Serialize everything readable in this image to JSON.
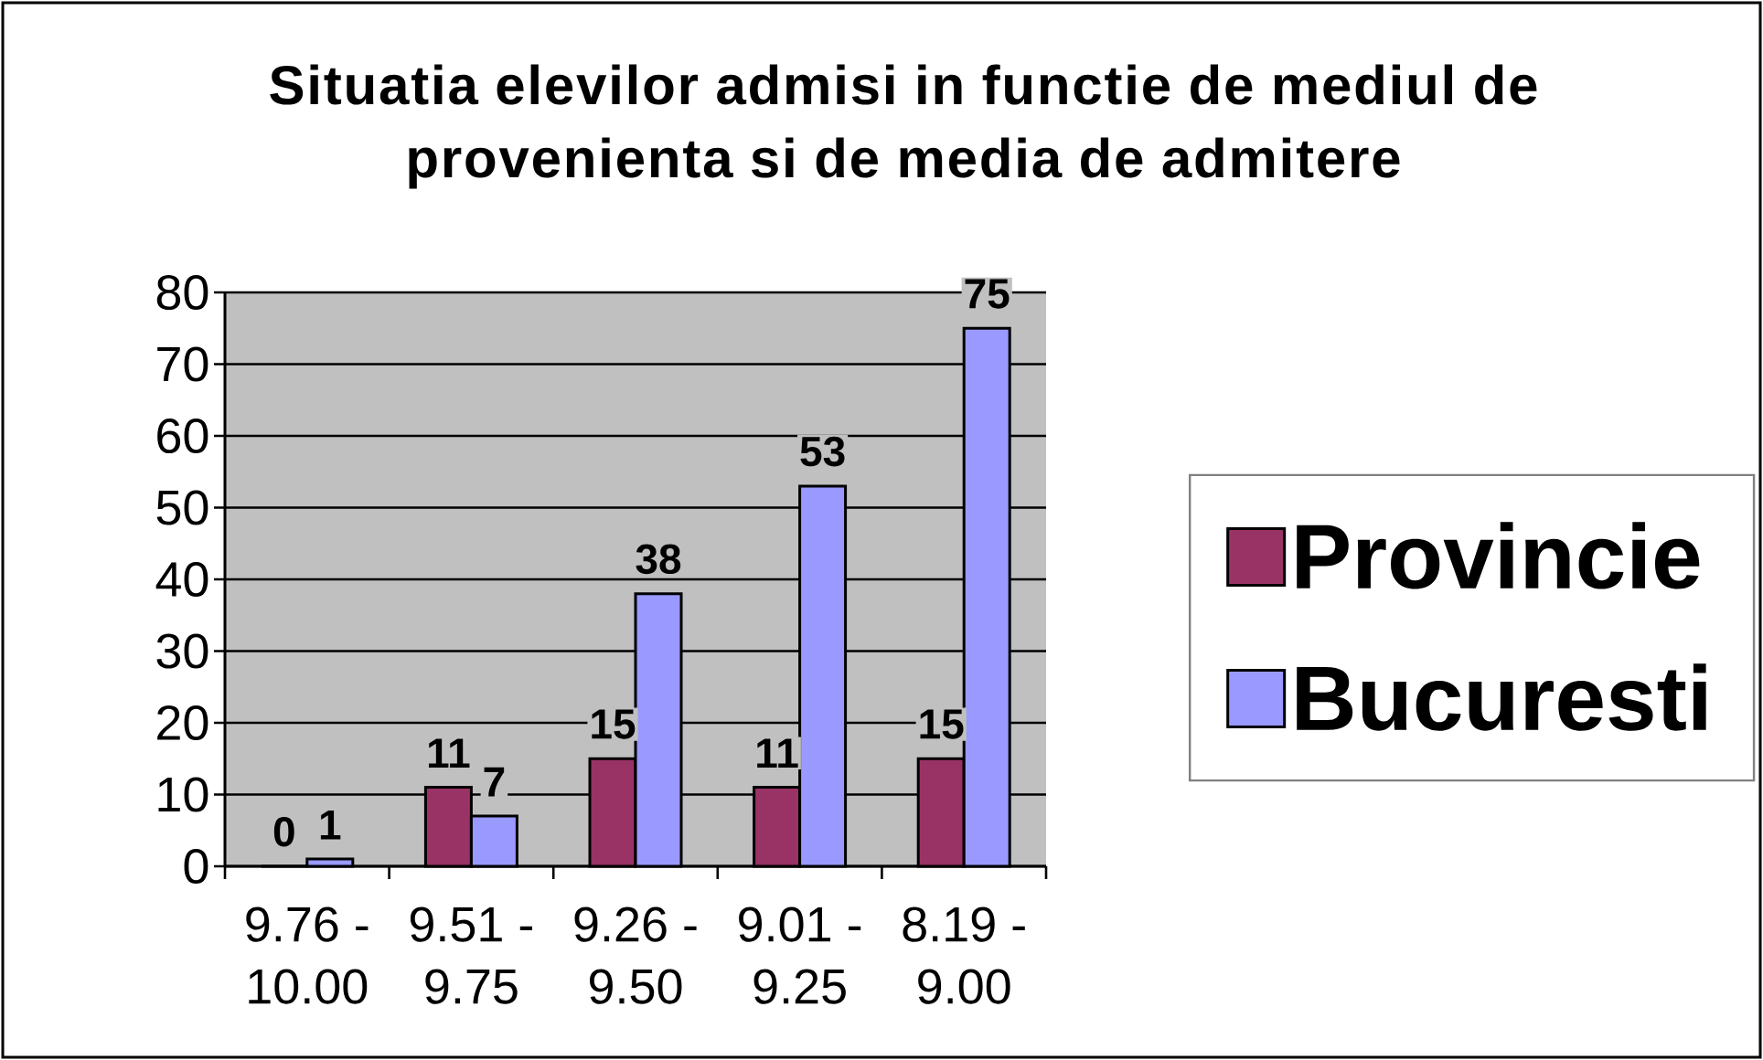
{
  "chart_data": {
    "type": "bar",
    "title": "Situatia elevilor admisi in functie de mediul de provenienta si de media de admitere",
    "categories": [
      "9.76 - 10.00",
      "9.51 - 9.75",
      "9.26 - 9.50",
      "9.01 - 9.25",
      "8.19 - 9.00"
    ],
    "series": [
      {
        "name": "Provincie",
        "color": "#993366",
        "values": [
          0,
          11,
          15,
          11,
          15
        ]
      },
      {
        "name": "Bucuresti",
        "color": "#9999ff",
        "values": [
          1,
          7,
          38,
          53,
          75
        ]
      }
    ],
    "ylim": [
      0,
      80
    ],
    "yticks": [
      0,
      10,
      20,
      30,
      40,
      50,
      60,
      70,
      80
    ],
    "grid": "y",
    "legend": "right",
    "data_labels": true
  }
}
